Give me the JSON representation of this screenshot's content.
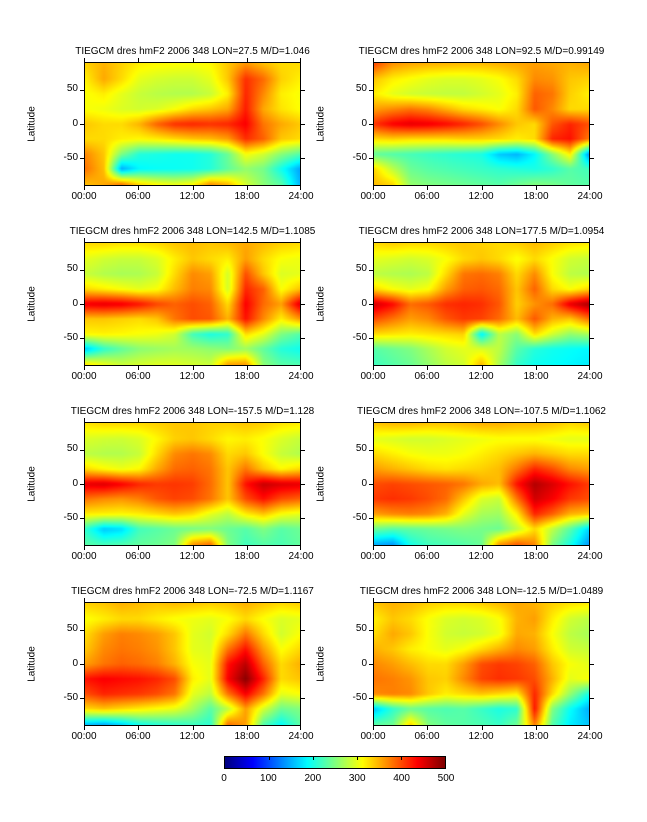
{
  "figure": {
    "background": "#ffffff",
    "colormap": "jet"
  },
  "axes": {
    "ylabel": "Latitude",
    "yticks": [
      "50",
      "0",
      "-50"
    ],
    "yticks_lat": [
      50,
      0,
      -50
    ],
    "xticks": [
      "00:00",
      "06:00",
      "12:00",
      "18:00",
      "24:00"
    ],
    "xticks_hours": [
      0,
      6,
      12,
      18,
      24
    ]
  },
  "colorbar": {
    "ticks": [
      "0",
      "100",
      "200",
      "300",
      "400",
      "500"
    ],
    "range": [
      0,
      500
    ]
  },
  "chart_grid": {
    "x_hours": [
      0,
      2,
      4,
      6,
      8,
      10,
      12,
      14,
      16,
      18,
      20,
      22,
      24
    ],
    "y_lat": [
      90,
      67.5,
      45,
      22.5,
      0,
      -22.5,
      -45,
      -67.5,
      -90
    ],
    "units": "hmF2 (km), jet colormap 0-500"
  },
  "chart_data": [
    {
      "type": "heatmap",
      "title": "TIEGCM dres hmF2 2006 348 LON=27.5 M/D=1.046",
      "lon": 27.5,
      "md": 1.046,
      "values": [
        [
          335,
          350,
          335,
          320,
          315,
          312,
          310,
          315,
          340,
          365,
          345,
          330,
          330
        ],
        [
          320,
          355,
          330,
          300,
          292,
          288,
          288,
          300,
          340,
          415,
          385,
          335,
          320
        ],
        [
          310,
          320,
          300,
          285,
          278,
          275,
          275,
          285,
          320,
          420,
          370,
          320,
          310
        ],
        [
          310,
          305,
          295,
          290,
          295,
          310,
          330,
          340,
          355,
          425,
          355,
          325,
          312
        ],
        [
          340,
          330,
          330,
          350,
          390,
          415,
          420,
          415,
          420,
          440,
          380,
          355,
          340
        ],
        [
          330,
          330,
          320,
          315,
          320,
          330,
          340,
          345,
          360,
          415,
          390,
          340,
          330
        ],
        [
          370,
          340,
          250,
          205,
          200,
          195,
          195,
          205,
          240,
          310,
          290,
          255,
          230
        ],
        [
          380,
          345,
          145,
          185,
          190,
          192,
          195,
          205,
          235,
          260,
          245,
          195,
          145
        ],
        [
          345,
          355,
          375,
          330,
          310,
          300,
          310,
          365,
          345,
          290,
          255,
          230,
          155
        ]
      ]
    },
    {
      "type": "heatmap",
      "title": "TIEGCM dres hmF2 2006 348 LON=92.5 M/D=0.99149",
      "lon": 92.5,
      "md": 0.99149,
      "values": [
        [
          400,
          365,
          355,
          350,
          348,
          345,
          345,
          350,
          355,
          360,
          355,
          350,
          355
        ],
        [
          340,
          320,
          310,
          300,
          295,
          295,
          300,
          310,
          330,
          370,
          365,
          340,
          335
        ],
        [
          320,
          300,
          290,
          285,
          282,
          282,
          290,
          300,
          320,
          390,
          380,
          335,
          320
        ],
        [
          360,
          370,
          380,
          370,
          350,
          330,
          320,
          310,
          330,
          395,
          370,
          330,
          330
        ],
        [
          415,
          440,
          450,
          445,
          435,
          420,
          400,
          370,
          340,
          330,
          395,
          420,
          400
        ],
        [
          330,
          335,
          330,
          330,
          330,
          335,
          335,
          330,
          320,
          330,
          420,
          430,
          380
        ],
        [
          235,
          228,
          222,
          215,
          210,
          205,
          200,
          160,
          150,
          185,
          255,
          320,
          140
        ],
        [
          330,
          280,
          240,
          230,
          225,
          220,
          215,
          210,
          205,
          200,
          210,
          230,
          220
        ],
        [
          345,
          330,
          260,
          250,
          245,
          240,
          235,
          230,
          240,
          250,
          245,
          235,
          230
        ]
      ]
    },
    {
      "type": "heatmap",
      "title": "TIEGCM dres hmF2 2006 348 LON=142.5 M/D=1.1085",
      "lon": 142.5,
      "md": 1.1085,
      "values": [
        [
          330,
          330,
          325,
          325,
          330,
          340,
          345,
          340,
          345,
          355,
          345,
          335,
          330
        ],
        [
          300,
          290,
          285,
          285,
          295,
          320,
          340,
          330,
          320,
          360,
          330,
          310,
          305
        ],
        [
          285,
          275,
          270,
          272,
          285,
          330,
          370,
          360,
          290,
          400,
          340,
          295,
          300
        ],
        [
          330,
          320,
          310,
          300,
          310,
          345,
          375,
          370,
          290,
          420,
          390,
          310,
          340
        ],
        [
          445,
          450,
          445,
          430,
          405,
          390,
          400,
          390,
          330,
          440,
          385,
          360,
          450
        ],
        [
          340,
          340,
          335,
          330,
          340,
          380,
          400,
          395,
          350,
          430,
          370,
          320,
          360
        ],
        [
          315,
          318,
          315,
          310,
          305,
          290,
          220,
          200,
          210,
          330,
          300,
          250,
          230
        ],
        [
          160,
          210,
          235,
          255,
          262,
          268,
          265,
          258,
          252,
          265,
          235,
          205,
          195
        ],
        [
          320,
          300,
          285,
          290,
          295,
          295,
          290,
          285,
          355,
          360,
          255,
          230,
          225
        ]
      ]
    },
    {
      "type": "heatmap",
      "title": "TIEGCM dres hmF2 2006 348 LON=177.5 M/D=1.0954",
      "lon": 177.5,
      "md": 1.0954,
      "values": [
        [
          330,
          335,
          330,
          330,
          335,
          340,
          335,
          330,
          335,
          345,
          335,
          325,
          320
        ],
        [
          300,
          295,
          290,
          295,
          310,
          330,
          340,
          330,
          310,
          330,
          310,
          290,
          285
        ],
        [
          280,
          275,
          272,
          280,
          330,
          380,
          385,
          375,
          330,
          370,
          310,
          280,
          275
        ],
        [
          330,
          310,
          300,
          310,
          360,
          390,
          395,
          385,
          340,
          390,
          330,
          310,
          330
        ],
        [
          460,
          435,
          385,
          395,
          415,
          420,
          415,
          395,
          335,
          365,
          385,
          450,
          480
        ],
        [
          400,
          380,
          360,
          370,
          395,
          410,
          405,
          385,
          345,
          395,
          350,
          340,
          380
        ],
        [
          330,
          325,
          320,
          325,
          330,
          335,
          180,
          280,
          255,
          330,
          290,
          260,
          270
        ],
        [
          230,
          240,
          250,
          270,
          290,
          300,
          295,
          280,
          230,
          205,
          195,
          190,
          185
        ],
        [
          220,
          230,
          240,
          260,
          280,
          290,
          345,
          270,
          215,
          195,
          190,
          185,
          180
        ]
      ]
    },
    {
      "type": "heatmap",
      "title": "TIEGCM dres hmF2 2006 348 LON=-157.5 M/D=1.128",
      "lon": -157.5,
      "md": 1.128,
      "values": [
        [
          325,
          330,
          330,
          330,
          335,
          340,
          340,
          335,
          335,
          340,
          335,
          325,
          320
        ],
        [
          295,
          290,
          288,
          295,
          315,
          335,
          340,
          330,
          315,
          320,
          310,
          295,
          285
        ],
        [
          280,
          275,
          275,
          285,
          330,
          370,
          380,
          370,
          330,
          340,
          310,
          285,
          275
        ],
        [
          330,
          315,
          305,
          315,
          355,
          385,
          390,
          380,
          340,
          380,
          340,
          315,
          330
        ],
        [
          450,
          455,
          440,
          420,
          410,
          412,
          408,
          385,
          340,
          430,
          465,
          455,
          450
        ],
        [
          380,
          370,
          365,
          375,
          395,
          405,
          400,
          380,
          340,
          400,
          430,
          400,
          390
        ],
        [
          320,
          318,
          315,
          320,
          330,
          340,
          330,
          300,
          280,
          320,
          340,
          310,
          300
        ],
        [
          210,
          160,
          170,
          220,
          230,
          240,
          245,
          250,
          240,
          230,
          250,
          230,
          240
        ],
        [
          230,
          220,
          225,
          235,
          240,
          250,
          360,
          380,
          250,
          220,
          230,
          225,
          235
        ]
      ]
    },
    {
      "type": "heatmap",
      "title": "TIEGCM dres hmF2 2006 348 LON=-107.5 M/D=1.1062",
      "lon": -107.5,
      "md": 1.1062,
      "values": [
        [
          340,
          345,
          345,
          340,
          340,
          345,
          350,
          350,
          345,
          345,
          340,
          330,
          335
        ],
        [
          300,
          295,
          290,
          290,
          295,
          300,
          305,
          310,
          310,
          310,
          305,
          300,
          300
        ],
        [
          330,
          320,
          310,
          305,
          305,
          310,
          320,
          330,
          340,
          350,
          340,
          330,
          330
        ],
        [
          360,
          350,
          340,
          330,
          325,
          330,
          335,
          345,
          380,
          420,
          400,
          370,
          360
        ],
        [
          400,
          405,
          400,
          395,
          390,
          380,
          355,
          345,
          430,
          475,
          455,
          430,
          410
        ],
        [
          410,
          415,
          410,
          400,
          385,
          340,
          295,
          285,
          380,
          460,
          440,
          410,
          400
        ],
        [
          360,
          370,
          375,
          370,
          350,
          300,
          270,
          265,
          320,
          420,
          390,
          350,
          340
        ],
        [
          240,
          230,
          235,
          240,
          245,
          250,
          245,
          240,
          280,
          330,
          280,
          230,
          170
        ],
        [
          150,
          140,
          200,
          220,
          225,
          230,
          240,
          360,
          390,
          370,
          250,
          200,
          140
        ]
      ]
    },
    {
      "type": "heatmap",
      "title": "TIEGCM dres hmF2 2006 348 LON=-72.5 M/D=1.1167",
      "lon": -72.5,
      "md": 1.1167,
      "values": [
        [
          335,
          340,
          350,
          345,
          340,
          345,
          340,
          335,
          340,
          350,
          340,
          330,
          335
        ],
        [
          310,
          320,
          330,
          330,
          320,
          310,
          305,
          300,
          310,
          330,
          310,
          295,
          300
        ],
        [
          330,
          360,
          375,
          370,
          360,
          340,
          300,
          290,
          330,
          380,
          330,
          290,
          310
        ],
        [
          340,
          370,
          380,
          375,
          365,
          340,
          300,
          295,
          380,
          430,
          360,
          310,
          330
        ],
        [
          360,
          380,
          390,
          385,
          375,
          350,
          310,
          300,
          430,
          470,
          390,
          330,
          350
        ],
        [
          430,
          440,
          435,
          430,
          420,
          400,
          320,
          300,
          440,
          495,
          420,
          330,
          340
        ],
        [
          400,
          420,
          415,
          410,
          400,
          380,
          300,
          280,
          380,
          440,
          380,
          300,
          310
        ],
        [
          330,
          340,
          330,
          320,
          310,
          300,
          270,
          230,
          280,
          360,
          290,
          240,
          250
        ],
        [
          160,
          150,
          170,
          200,
          210,
          215,
          220,
          210,
          380,
          360,
          230,
          190,
          230
        ]
      ]
    },
    {
      "type": "heatmap",
      "title": "TIEGCM dres hmF2 2006 348 LON=-12.5 M/D=1.0489",
      "lon": -12.5,
      "md": 1.0489,
      "values": [
        [
          340,
          350,
          345,
          335,
          330,
          330,
          335,
          345,
          355,
          350,
          335,
          325,
          320
        ],
        [
          320,
          340,
          330,
          310,
          295,
          290,
          295,
          310,
          350,
          360,
          320,
          290,
          280
        ],
        [
          330,
          355,
          340,
          310,
          290,
          285,
          290,
          305,
          355,
          350,
          310,
          280,
          270
        ],
        [
          350,
          340,
          320,
          310,
          300,
          310,
          330,
          350,
          370,
          360,
          320,
          290,
          285
        ],
        [
          370,
          360,
          345,
          330,
          330,
          360,
          400,
          410,
          405,
          390,
          340,
          310,
          300
        ],
        [
          380,
          375,
          365,
          340,
          335,
          370,
          405,
          415,
          410,
          400,
          350,
          300,
          310
        ],
        [
          370,
          375,
          370,
          340,
          320,
          330,
          340,
          330,
          320,
          420,
          330,
          260,
          200
        ],
        [
          160,
          210,
          240,
          230,
          225,
          230,
          215,
          200,
          210,
          430,
          250,
          190,
          150
        ],
        [
          230,
          240,
          330,
          250,
          235,
          230,
          225,
          215,
          240,
          380,
          230,
          180,
          160
        ]
      ]
    }
  ]
}
